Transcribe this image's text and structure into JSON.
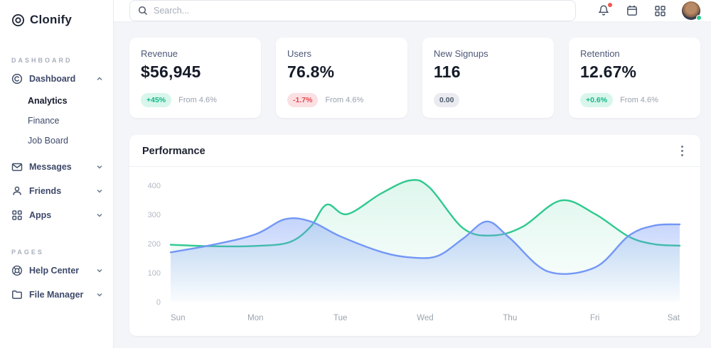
{
  "brand": {
    "name": "Clonify"
  },
  "topbar": {
    "search_placeholder": "Search..."
  },
  "sidebar": {
    "sections": [
      {
        "label": "DASHBOARD",
        "items": [
          {
            "label": "Dashboard",
            "icon": "dashboard-icon",
            "expanded": true,
            "children": [
              {
                "label": "Analytics",
                "active": true
              },
              {
                "label": "Finance",
                "active": false
              },
              {
                "label": "Job Board",
                "active": false
              }
            ]
          },
          {
            "label": "Messages",
            "icon": "mail-icon"
          },
          {
            "label": "Friends",
            "icon": "user-icon"
          },
          {
            "label": "Apps",
            "icon": "grid-icon"
          }
        ]
      },
      {
        "label": "PAGES",
        "items": [
          {
            "label": "Help Center",
            "icon": "lifebuoy-icon"
          },
          {
            "label": "File Manager",
            "icon": "folder-icon"
          }
        ]
      }
    ]
  },
  "stats": [
    {
      "label": "Revenue",
      "value": "$56,945",
      "badge": "+45%",
      "badge_type": "positive",
      "note": "From 4.6%"
    },
    {
      "label": "Users",
      "value": "76.8%",
      "badge": "-1.7%",
      "badge_type": "negative",
      "note": "From 4.6%"
    },
    {
      "label": "New Signups",
      "value": "116",
      "badge": "0.00",
      "badge_type": "neutral",
      "note": ""
    },
    {
      "label": "Retention",
      "value": "12.67%",
      "badge": "+0.6%",
      "badge_type": "positive",
      "note": "From 4.6%"
    }
  ],
  "chart_card": {
    "title": "Performance"
  },
  "chart_data": {
    "type": "area",
    "title": "Performance",
    "x_labels": [
      "Sun",
      "Mon",
      "Tue",
      "Wed",
      "Thu",
      "Fri",
      "Sat"
    ],
    "y_ticks": [
      0,
      100,
      200,
      300,
      400
    ],
    "ylim": [
      0,
      440
    ],
    "grid": false,
    "legend": "none",
    "series": [
      {
        "name": "series-green",
        "color": "#2fc98f",
        "points": [
          [
            0,
            196
          ],
          [
            0.5,
            191
          ],
          [
            1,
            192
          ],
          [
            1.4,
            205
          ],
          [
            1.65,
            258
          ],
          [
            1.84,
            334
          ],
          [
            2.08,
            301
          ],
          [
            2.48,
            372
          ],
          [
            2.82,
            417
          ],
          [
            3.05,
            393
          ],
          [
            3.45,
            252
          ],
          [
            3.8,
            228
          ],
          [
            4.15,
            258
          ],
          [
            4.6,
            348
          ],
          [
            5,
            302
          ],
          [
            5.4,
            224
          ],
          [
            5.7,
            198
          ],
          [
            6,
            193
          ]
        ]
      },
      {
        "name": "series-blue",
        "color": "#7397f5",
        "points": [
          [
            0,
            170
          ],
          [
            0.5,
            196
          ],
          [
            1,
            232
          ],
          [
            1.35,
            284
          ],
          [
            1.65,
            276
          ],
          [
            2,
            225
          ],
          [
            2.5,
            170
          ],
          [
            2.85,
            152
          ],
          [
            3.15,
            158
          ],
          [
            3.45,
            218
          ],
          [
            3.73,
            276
          ],
          [
            4,
            218
          ],
          [
            4.45,
            104
          ],
          [
            5,
            118
          ],
          [
            5.4,
            227
          ],
          [
            5.7,
            262
          ],
          [
            6,
            266
          ]
        ]
      }
    ]
  },
  "colors": {
    "accent_green": "#2fc98f",
    "accent_blue": "#7397f5",
    "badge_positive": "#12b886",
    "badge_negative": "#e5484d",
    "notification_dot": "#f4564e",
    "online_dot": "#2ecc8e"
  }
}
